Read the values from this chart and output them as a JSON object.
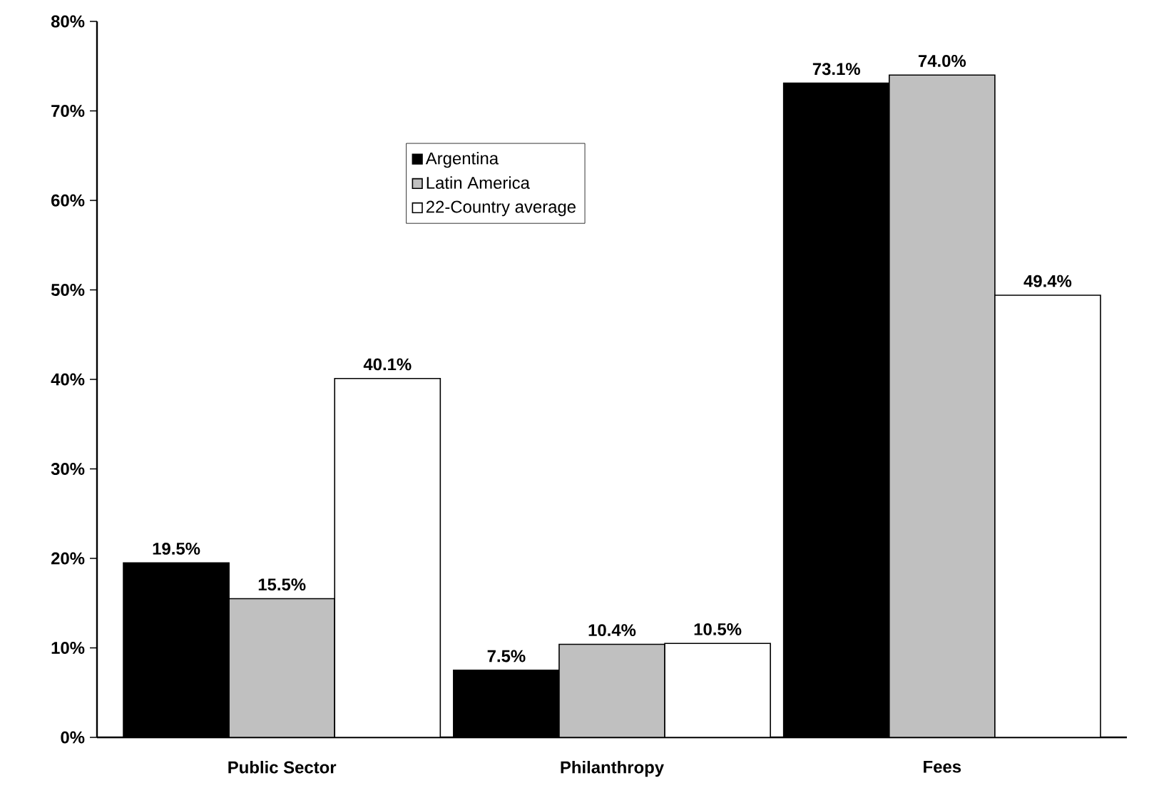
{
  "chart_data": {
    "type": "bar",
    "categories": [
      "Public Sector",
      "Philanthropy",
      "Fees"
    ],
    "series": [
      {
        "name": "Argentina",
        "color": "#000000",
        "values": [
          19.5,
          7.5,
          73.1
        ],
        "value_labels": [
          "19.5%",
          "7.5%",
          "73.1%"
        ]
      },
      {
        "name": "Latin America",
        "color": "#c0c0c0",
        "values": [
          15.5,
          10.4,
          74.0
        ],
        "value_labels": [
          "15.5%",
          "10.4%",
          "74.0%"
        ]
      },
      {
        "name": "22-Country average",
        "color": "#ffffff",
        "values": [
          40.1,
          10.5,
          49.4
        ],
        "value_labels": [
          "40.1%",
          "10.5%",
          "49.4%"
        ]
      }
    ],
    "ylim": [
      0,
      80
    ],
    "yticks": [
      {
        "value": 0,
        "label": "0%"
      },
      {
        "value": 10,
        "label": "10%"
      },
      {
        "value": 20,
        "label": "20%"
      },
      {
        "value": 30,
        "label": "30%"
      },
      {
        "value": 40,
        "label": "40%"
      },
      {
        "value": 50,
        "label": "50%"
      },
      {
        "value": 60,
        "label": "60%"
      },
      {
        "value": 70,
        "label": "70%"
      },
      {
        "value": 80,
        "label": "80%"
      }
    ],
    "grid": false,
    "legend": "top"
  }
}
